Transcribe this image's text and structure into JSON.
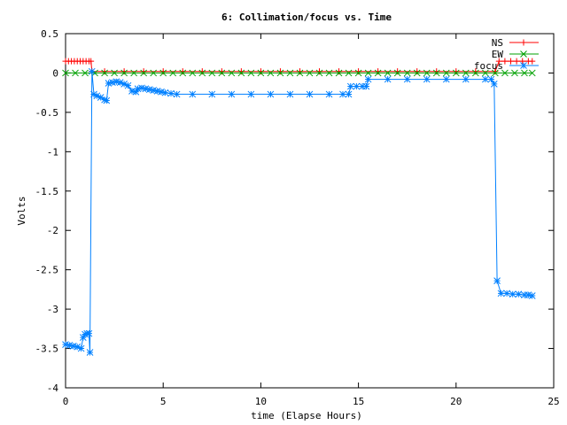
{
  "chart_data": {
    "type": "line",
    "title": "6: Collimation/focus vs. Time",
    "xlabel": "time (Elapse Hours)",
    "ylabel": "Volts",
    "xlim": [
      0,
      25
    ],
    "ylim": [
      -4,
      0.5
    ],
    "x_ticks": [
      "0",
      "5",
      "10",
      "15",
      "20",
      "25"
    ],
    "y_ticks": [
      "0.5",
      "0",
      "-0.5",
      "-1",
      "-1.5",
      "-2",
      "-2.5",
      "-3",
      "-3.5",
      "-4"
    ],
    "grid": false,
    "legend_position": "top-right",
    "series": [
      {
        "name": "NS",
        "color": "#ff0000",
        "marker": "plus",
        "points": [
          [
            0,
            0.15
          ],
          [
            0.15,
            0.15
          ],
          [
            0.3,
            0.15
          ],
          [
            0.45,
            0.15
          ],
          [
            0.6,
            0.15
          ],
          [
            0.75,
            0.15
          ],
          [
            0.9,
            0.15
          ],
          [
            1.05,
            0.15
          ],
          [
            1.2,
            0.15
          ],
          [
            1.3,
            0.15
          ],
          [
            1.35,
            0.02
          ],
          [
            2,
            0.02
          ],
          [
            3,
            0.02
          ],
          [
            4,
            0.02
          ],
          [
            5,
            0.02
          ],
          [
            6,
            0.02
          ],
          [
            7,
            0.02
          ],
          [
            8,
            0.02
          ],
          [
            9,
            0.02
          ],
          [
            10,
            0.02
          ],
          [
            11,
            0.02
          ],
          [
            12,
            0.02
          ],
          [
            13,
            0.02
          ],
          [
            14,
            0.02
          ],
          [
            15,
            0.02
          ],
          [
            16,
            0.02
          ],
          [
            17,
            0.02
          ],
          [
            18,
            0.02
          ],
          [
            19,
            0.02
          ],
          [
            20,
            0.02
          ],
          [
            21,
            0.02
          ],
          [
            22,
            0.02
          ],
          [
            22.2,
            0.15
          ],
          [
            22.5,
            0.15
          ],
          [
            22.8,
            0.15
          ],
          [
            23.1,
            0.15
          ],
          [
            23.4,
            0.15
          ],
          [
            23.7,
            0.15
          ],
          [
            23.9,
            0.15
          ]
        ]
      },
      {
        "name": "EW",
        "color": "#00a000",
        "marker": "cross",
        "points": [
          [
            0,
            0
          ],
          [
            0.5,
            0
          ],
          [
            1,
            0
          ],
          [
            1.5,
            0
          ],
          [
            2,
            0
          ],
          [
            2.5,
            0
          ],
          [
            3,
            0
          ],
          [
            3.5,
            0
          ],
          [
            4,
            0
          ],
          [
            4.5,
            0
          ],
          [
            5,
            0
          ],
          [
            5.5,
            0
          ],
          [
            6,
            0
          ],
          [
            6.5,
            0
          ],
          [
            7,
            0
          ],
          [
            7.5,
            0
          ],
          [
            8,
            0
          ],
          [
            8.5,
            0
          ],
          [
            9,
            0
          ],
          [
            9.5,
            0
          ],
          [
            10,
            0
          ],
          [
            10.5,
            0
          ],
          [
            11,
            0
          ],
          [
            11.5,
            0
          ],
          [
            12,
            0
          ],
          [
            12.5,
            0
          ],
          [
            13,
            0
          ],
          [
            13.5,
            0
          ],
          [
            14,
            0
          ],
          [
            14.5,
            0
          ],
          [
            15,
            0
          ],
          [
            15.5,
            0
          ],
          [
            16,
            0
          ],
          [
            16.5,
            0
          ],
          [
            17,
            0
          ],
          [
            17.5,
            0
          ],
          [
            18,
            0
          ],
          [
            18.5,
            0
          ],
          [
            19,
            0
          ],
          [
            19.5,
            0
          ],
          [
            20,
            0
          ],
          [
            20.5,
            0
          ],
          [
            21,
            0
          ],
          [
            21.5,
            0
          ],
          [
            22,
            0
          ],
          [
            22.5,
            0
          ],
          [
            23,
            0
          ],
          [
            23.5,
            0
          ],
          [
            23.9,
            0
          ]
        ]
      },
      {
        "name": "focus",
        "color": "#0080ff",
        "marker": "star",
        "points": [
          [
            0,
            -3.45
          ],
          [
            0.2,
            -3.46
          ],
          [
            0.4,
            -3.47
          ],
          [
            0.6,
            -3.48
          ],
          [
            0.8,
            -3.5
          ],
          [
            0.9,
            -3.36
          ],
          [
            1.0,
            -3.32
          ],
          [
            1.1,
            -3.31
          ],
          [
            1.2,
            -3.31
          ],
          [
            1.25,
            -3.55
          ],
          [
            1.35,
            0.02
          ],
          [
            1.45,
            -0.27
          ],
          [
            1.6,
            -0.29
          ],
          [
            1.8,
            -0.31
          ],
          [
            2.0,
            -0.34
          ],
          [
            2.1,
            -0.35
          ],
          [
            2.2,
            -0.13
          ],
          [
            2.4,
            -0.12
          ],
          [
            2.6,
            -0.11
          ],
          [
            2.8,
            -0.12
          ],
          [
            3.0,
            -0.14
          ],
          [
            3.2,
            -0.16
          ],
          [
            3.4,
            -0.23
          ],
          [
            3.6,
            -0.24
          ],
          [
            3.7,
            -0.2
          ],
          [
            3.9,
            -0.19
          ],
          [
            4.1,
            -0.2
          ],
          [
            4.3,
            -0.21
          ],
          [
            4.5,
            -0.22
          ],
          [
            4.7,
            -0.23
          ],
          [
            4.9,
            -0.24
          ],
          [
            5.1,
            -0.25
          ],
          [
            5.4,
            -0.26
          ],
          [
            5.7,
            -0.27
          ],
          [
            6.5,
            -0.27
          ],
          [
            7.5,
            -0.27
          ],
          [
            8.5,
            -0.27
          ],
          [
            9.5,
            -0.27
          ],
          [
            10.5,
            -0.27
          ],
          [
            11.5,
            -0.27
          ],
          [
            12.5,
            -0.27
          ],
          [
            13.5,
            -0.27
          ],
          [
            14.2,
            -0.27
          ],
          [
            14.5,
            -0.27
          ],
          [
            14.6,
            -0.17
          ],
          [
            14.9,
            -0.17
          ],
          [
            15.2,
            -0.17
          ],
          [
            15.4,
            -0.17
          ],
          [
            15.5,
            -0.08
          ],
          [
            16.5,
            -0.08
          ],
          [
            17.5,
            -0.08
          ],
          [
            18.5,
            -0.08
          ],
          [
            19.5,
            -0.08
          ],
          [
            20.5,
            -0.08
          ],
          [
            21.5,
            -0.08
          ],
          [
            21.8,
            -0.08
          ],
          [
            21.95,
            -0.14
          ],
          [
            22.1,
            -2.64
          ],
          [
            22.3,
            -2.8
          ],
          [
            22.6,
            -2.8
          ],
          [
            22.9,
            -2.81
          ],
          [
            23.2,
            -2.81
          ],
          [
            23.5,
            -2.82
          ],
          [
            23.7,
            -2.82
          ],
          [
            23.9,
            -2.83
          ]
        ]
      }
    ]
  }
}
